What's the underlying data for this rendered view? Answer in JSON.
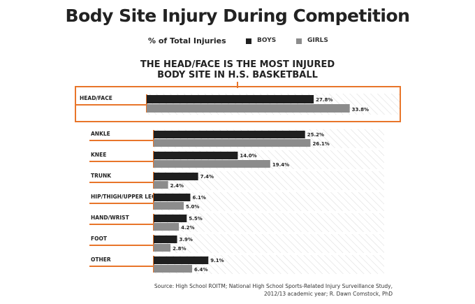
{
  "title": "Body Site Injury During Competition",
  "legend": {
    "label": "% of Total Injuries",
    "boys": "BOYS",
    "girls": "GIRLS"
  },
  "headline": {
    "line1": "THE HEAD/FACE IS THE MOST INJURED",
    "line2": "BODY SITE IN H.S. BASKETBALL"
  },
  "colors": {
    "boys": "#1f1f1f",
    "girls": "#8c8c8c",
    "accent": "#e8752a",
    "hatch": "#dedede"
  },
  "chart_data": {
    "type": "bar",
    "orientation": "horizontal",
    "categories": [
      "HEAD/FACE",
      "ANKLE",
      "KNEE",
      "TRUNK",
      "HIP/THIGH/UPPER LEG",
      "HAND/WRIST",
      "FOOT",
      "OTHER"
    ],
    "series": [
      {
        "name": "BOYS",
        "values": [
          27.8,
          25.2,
          14.0,
          7.4,
          6.1,
          5.5,
          3.9,
          9.1
        ],
        "labels": [
          "27.8%",
          "25.2%",
          "14.0%",
          "7.4%",
          "6.1%",
          "5.5%",
          "3.9%",
          "9.1%"
        ]
      },
      {
        "name": "GIRLS",
        "values": [
          33.8,
          26.1,
          19.4,
          2.4,
          5.0,
          4.2,
          2.8,
          6.4
        ],
        "labels": [
          "33.8%",
          "26.1%",
          "19.4%",
          "2.4%",
          "5.0%",
          "4.2%",
          "2.8%",
          "6.4%"
        ]
      }
    ],
    "highlighted_category": "HEAD/FACE",
    "grid": false
  },
  "source": {
    "line1": "Source:  High School ROITM; National High School Sports-Related Injury Surveillance Study,",
    "line2": "2012/13 academic year;  R. Dawn Comstock, PhD"
  }
}
